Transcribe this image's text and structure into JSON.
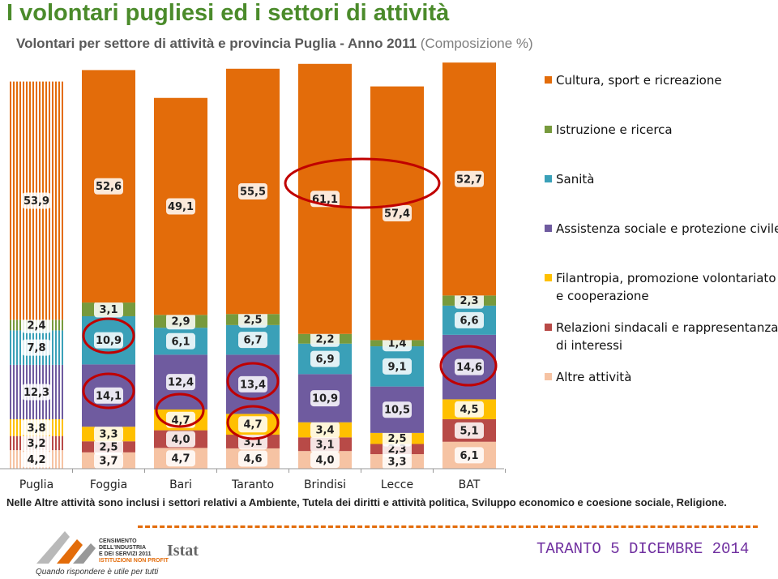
{
  "chart_data": {
    "type": "bar",
    "stacked": true,
    "title": "I volontari pugliesi ed i settori di attività",
    "subtitle": "Volontari per settore di attività e provincia Puglia - Anno 2011",
    "subtitle_note": "(Composizione %)",
    "categories": [
      "Puglia",
      "Foggia",
      "Bari",
      "Taranto",
      "Brindisi",
      "Lecce",
      "BAT"
    ],
    "series": [
      {
        "name": "Altre attività",
        "color": "#f6c3a3",
        "values": [
          4.2,
          3.7,
          4.7,
          4.6,
          4.0,
          3.3,
          6.1
        ],
        "value_labels": [
          "4,2",
          "3,7",
          "4,7",
          "4,6",
          "4,0",
          "3,3",
          "6,1"
        ]
      },
      {
        "name": "Relazioni sindacali e rappresentanza di interessi",
        "color": "#b84a47",
        "values": [
          3.2,
          2.5,
          4.0,
          3.1,
          3.1,
          2.3,
          5.1
        ],
        "value_labels": [
          "3,2",
          "2,5",
          "4,0",
          "3,1",
          "3,1",
          "2,3",
          "5,1"
        ]
      },
      {
        "name": "Filantropia, promozione volontariato e cooperazione",
        "color": "#ffc000",
        "values": [
          3.8,
          3.3,
          4.7,
          4.7,
          3.4,
          2.5,
          4.5
        ],
        "value_labels": [
          "3,8",
          "3,3",
          "4,7",
          "4,7",
          "3,4",
          "2,5",
          "4,5"
        ]
      },
      {
        "name": "Assistenza sociale e protezione civile",
        "color": "#6f5b9f",
        "values": [
          12.3,
          14.1,
          12.4,
          13.4,
          10.9,
          10.5,
          14.6
        ],
        "value_labels": [
          "12,3",
          "14,1",
          "12,4",
          "13,4",
          "10,9",
          "10,5",
          "14,6"
        ]
      },
      {
        "name": "Sanità",
        "color": "#3aa0b8",
        "values": [
          7.8,
          10.9,
          6.1,
          6.7,
          6.9,
          9.1,
          6.6
        ],
        "value_labels": [
          "7,8",
          "10,9",
          "6,1",
          "6,7",
          "6,9",
          "9,1",
          "6,6"
        ]
      },
      {
        "name": "Istruzione e ricerca",
        "color": "#779a3d",
        "values": [
          2.4,
          3.1,
          2.9,
          2.5,
          2.2,
          1.4,
          2.3
        ],
        "value_labels": [
          "2,4",
          "3,1",
          "2,9",
          "2,5",
          "2,2",
          "1,4",
          "2,3"
        ]
      },
      {
        "name": "Cultura, sport e ricreazione",
        "color": "#e36c0a",
        "values": [
          53.9,
          52.6,
          49.1,
          55.5,
          61.1,
          57.4,
          52.7
        ],
        "value_labels": [
          "53,9",
          "52,6",
          "49,1",
          "55,5",
          "61,1",
          "57,4",
          "52,7"
        ]
      }
    ],
    "legend": "right",
    "note": "Nelle Altre attività sono inclusi i settori relativi a Ambiente, Tutela dei diritti e attività politica, Sviluppo economico e coesione sociale, Religione."
  },
  "footer": {
    "census": [
      "CENSIMENTO",
      "DELL'INDUSTRIA",
      "E DEI SERVIZI 2011"
    ],
    "census_sub": "ISTITUZIONI NON PROFIT",
    "tagline": "Quando rispondere è utile per tutti",
    "istat": "Istat",
    "event": "TARANTO 5 DICEMBRE 2014"
  }
}
